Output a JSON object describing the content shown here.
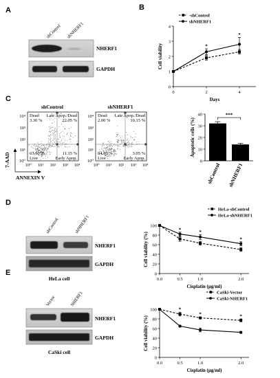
{
  "panels": [
    "A",
    "B",
    "C",
    "D",
    "E"
  ],
  "panel_a": {
    "lanes": [
      "shControl",
      "shNHERF1"
    ],
    "bands": [
      "NHERF1",
      "GAPDH"
    ]
  },
  "panel_c_flow": {
    "titles": [
      "shControl",
      "shNHERF1"
    ],
    "y_axis_label": "7-AAD",
    "x_axis_label": "ANNEXIN V",
    "quadrant_names": [
      "Dead",
      "Late Apop./Dead",
      "Live",
      "Early Apop."
    ],
    "plots": [
      {
        "dead": "3.30 %",
        "late": "22.05 %",
        "live": "63.50 %",
        "early": "11.15 %"
      },
      {
        "dead": "2.00 %",
        "late": "10.15 %",
        "live": "84.80 %",
        "early": "3.05 %"
      }
    ],
    "ticks_y": [
      "10⁴",
      "10³",
      "10²",
      "10¹",
      "10⁰"
    ],
    "ticks_x": [
      "10⁰",
      "10¹",
      "10²",
      "10³",
      "10⁴"
    ]
  },
  "panel_d": {
    "lanes": [
      "shControl",
      "shNHERF1"
    ],
    "bands": [
      "NHERF1",
      "GAPDH"
    ],
    "caption": "HeLa cell"
  },
  "panel_e": {
    "lanes": [
      "Vector",
      "NHERF1"
    ],
    "bands": [
      "NHERF1",
      "GAPDH"
    ],
    "caption": "CaSki cell"
  },
  "chart_data": [
    {
      "type": "line",
      "xlabel": "Days",
      "ylabel": "Cell viability",
      "x": [
        0,
        2,
        4
      ],
      "xlim": [
        0,
        5
      ],
      "ylim": [
        0,
        4
      ],
      "xticks": [
        0,
        2,
        4
      ],
      "yticks": [
        0,
        1,
        2,
        3,
        4
      ],
      "legend": "top-left",
      "series": [
        {
          "name": "-shControl",
          "values": [
            1.0,
            1.9,
            2.3
          ],
          "errors": [
            0.05,
            0.15,
            0.15
          ],
          "style": "dashed",
          "marker": "square"
        },
        {
          "name": "shNHERF1",
          "values": [
            1.0,
            2.3,
            2.8
          ],
          "errors": [
            0.05,
            0.2,
            0.45
          ],
          "style": "solid",
          "marker": "circle"
        }
      ],
      "annotations": [
        {
          "x": 2,
          "text": "*"
        },
        {
          "x": 4,
          "text": "*"
        }
      ]
    },
    {
      "type": "bar",
      "categories": [
        "shControl",
        "shNHERF1"
      ],
      "values": [
        32,
        14
      ],
      "errors": [
        1.5,
        1.0
      ],
      "ylabel": "Apoptotic cells (%)",
      "ylim": [
        0,
        40
      ],
      "yticks": [
        0,
        10,
        20,
        30,
        40
      ],
      "colors": [
        "#000000",
        "#000000"
      ],
      "annotation": "***"
    },
    {
      "type": "line",
      "xlabel": "Cisplatin (µg/ml)",
      "ylabel": "Cell viability (%)",
      "x": [
        0.0,
        0.5,
        1.0,
        2.0
      ],
      "xlim": [
        0,
        2.2
      ],
      "ylim": [
        0,
        100
      ],
      "xticks": [
        "0.0",
        "0.5",
        "1.0",
        "2.0"
      ],
      "yticks": [
        0,
        20,
        40,
        60,
        80,
        100
      ],
      "legend": "top-right",
      "series": [
        {
          "name": "HeLa-shControl",
          "values": [
            100,
            72,
            63,
            50
          ],
          "errors": [
            0,
            5,
            4,
            4
          ],
          "style": "dashed",
          "marker": "square"
        },
        {
          "name": "HeLa-shNHERF1",
          "values": [
            100,
            82,
            76,
            62
          ],
          "errors": [
            0,
            4,
            5,
            4
          ],
          "style": "solid",
          "marker": "circle"
        }
      ],
      "annotations": [
        {
          "x": 0.5,
          "text": "*"
        },
        {
          "x": 1.0,
          "text": "*"
        },
        {
          "x": 2.0,
          "text": "*"
        }
      ]
    },
    {
      "type": "line",
      "xlabel": "Cisplatin (µg/ml)",
      "ylabel": "Cell viability (%)",
      "x": [
        0.0,
        0.5,
        1.0,
        2.0
      ],
      "xlim": [
        0,
        2.2
      ],
      "ylim": [
        0,
        100
      ],
      "xticks": [
        "0.0",
        "0.5",
        "1.0",
        "2.0"
      ],
      "yticks": [
        0,
        20,
        40,
        60,
        80,
        100
      ],
      "legend": "top-right",
      "series": [
        {
          "name": "CaSki-Vector",
          "values": [
            100,
            90,
            82,
            77
          ],
          "errors": [
            0,
            4,
            2,
            3
          ],
          "style": "dashed",
          "marker": "square"
        },
        {
          "name": "CaSki-NHERF1",
          "values": [
            100,
            65,
            57,
            52
          ],
          "errors": [
            0,
            2,
            4,
            2
          ],
          "style": "solid",
          "marker": "circle"
        }
      ],
      "annotations": [
        {
          "x": 0.5,
          "text": "*"
        },
        {
          "x": 1.0,
          "text": "*"
        },
        {
          "x": 2.0,
          "text": "*"
        }
      ]
    }
  ]
}
